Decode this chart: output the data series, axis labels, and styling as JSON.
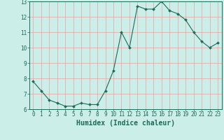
{
  "x": [
    0,
    1,
    2,
    3,
    4,
    5,
    6,
    7,
    8,
    9,
    10,
    11,
    12,
    13,
    14,
    15,
    16,
    17,
    18,
    19,
    20,
    21,
    22,
    23
  ],
  "y": [
    7.8,
    7.2,
    6.6,
    6.4,
    6.2,
    6.2,
    6.4,
    6.3,
    6.3,
    7.2,
    8.5,
    11.0,
    10.0,
    12.7,
    12.5,
    12.5,
    13.0,
    12.4,
    12.2,
    11.8,
    11.0,
    10.4,
    10.0,
    10.3
  ],
  "xlabel": "Humidex (Indice chaleur)",
  "xlim": [
    -0.5,
    23.5
  ],
  "ylim": [
    6,
    13
  ],
  "yticks": [
    6,
    7,
    8,
    9,
    10,
    11,
    12,
    13
  ],
  "xticks": [
    0,
    1,
    2,
    3,
    4,
    5,
    6,
    7,
    8,
    9,
    10,
    11,
    12,
    13,
    14,
    15,
    16,
    17,
    18,
    19,
    20,
    21,
    22,
    23
  ],
  "line_color": "#1a6b5a",
  "marker_color": "#1a6b5a",
  "bg_color": "#cceee8",
  "grid_color": "#e8a0a0",
  "axes_color": "#1a6b5a",
  "tick_label_fontsize": 5.5,
  "xlabel_fontsize": 7.0
}
